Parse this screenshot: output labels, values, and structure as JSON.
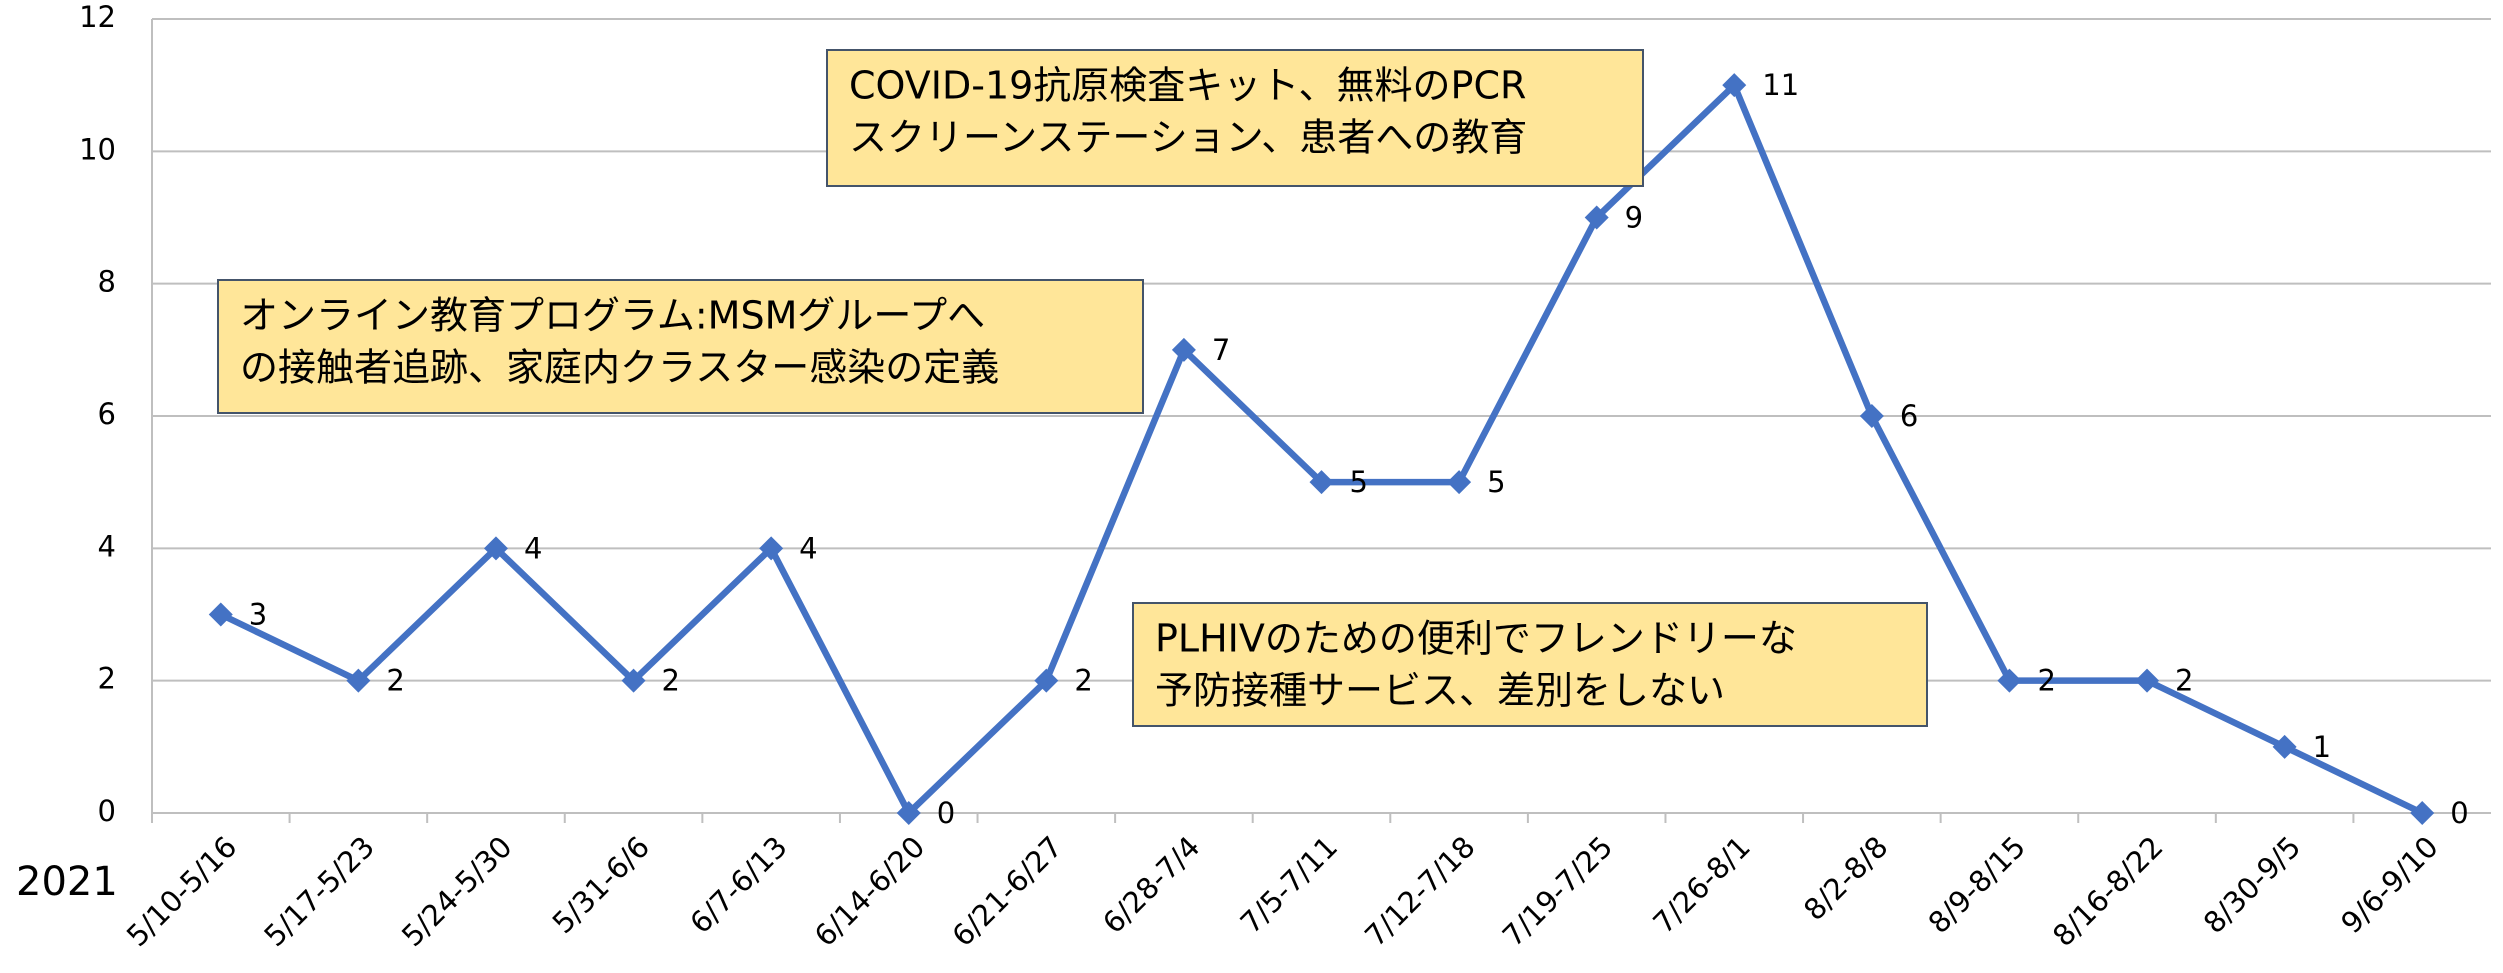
{
  "chart_data": {
    "type": "line",
    "x_label": "2021",
    "categories": [
      "5/10-5/16",
      "5/17-5/23",
      "5/24-5/30",
      "5/31-6/6",
      "6/7-6/13",
      "6/14-6/20",
      "6/21-6/27",
      "6/28-7/4",
      "7/5-7/11",
      "7/12-7/18",
      "7/19-7/25",
      "7/26-8/1",
      "8/2-8/8",
      "8/9-8/15",
      "8/16-8/22",
      "8/30-9/5",
      "9/6-9/10"
    ],
    "series": [
      {
        "color": "#4472c4",
        "values": [
          3,
          2,
          4,
          2,
          4,
          0,
          2,
          7,
          5,
          5,
          9,
          11,
          6,
          2,
          2,
          1,
          0
        ]
      }
    ],
    "ylim": [
      0,
      12
    ],
    "yticks": [
      0,
      2,
      4,
      6,
      8,
      10,
      12
    ],
    "grid": true,
    "annotations": [
      {
        "lines": [
          "COVID-19抗原検査キット、無料のPCR",
          "スクリーンステーション、患者への教育"
        ]
      },
      {
        "lines": [
          "オンライン教育プログラム:MSMグループへ",
          "の接触者追跡、家庭内クラスター感染の定義"
        ]
      },
      {
        "lines": [
          "PLHIVのための便利でフレンドリーな",
          "予防接種サービス、差別をしない"
        ]
      }
    ]
  }
}
